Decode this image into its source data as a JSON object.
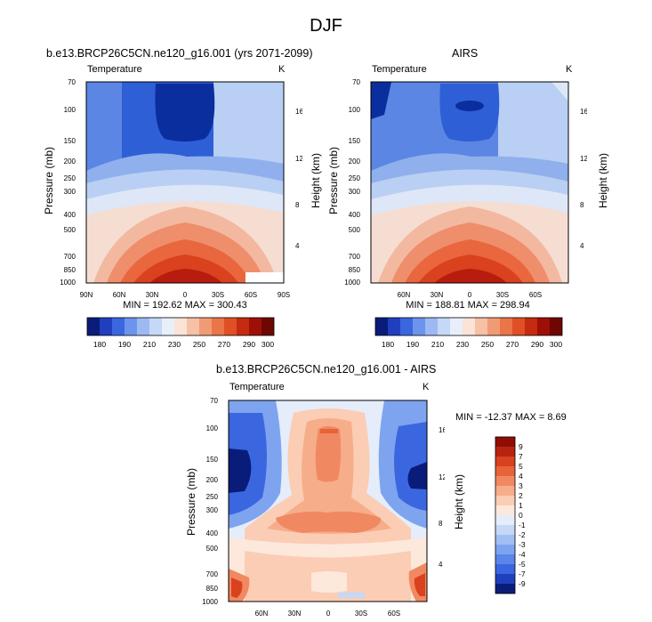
{
  "figure": {
    "title": "DJF"
  },
  "colors": {
    "model_contours": [
      "#0a2e9e",
      "#2f5fd6",
      "#5b86e3",
      "#8fb0ec",
      "#b9cff3",
      "#dde7f7",
      "#f6ddd2",
      "#f3b8a0",
      "#ef8e6b",
      "#e9663f",
      "#d9411f",
      "#b71c0e"
    ],
    "abs_colorbar": [
      "#0a1c7a",
      "#1f3fbf",
      "#3a67e0",
      "#6d94ec",
      "#9cb9f2",
      "#c5d8f7",
      "#e8effb",
      "#fbe3d6",
      "#f6c1a4",
      "#f19b74",
      "#ea7549",
      "#e04f25",
      "#c62a10",
      "#9e1006",
      "#6e0603"
    ],
    "diff_colorbar": [
      "#0a1c7a",
      "#1f3fbf",
      "#3a67e0",
      "#5a86ea",
      "#7ea4f0",
      "#a2bff4",
      "#c6d7f7",
      "#e5edfb",
      "#fde8dc",
      "#fbcdb4",
      "#f6ad8a",
      "#f08962",
      "#e86338",
      "#d9411f",
      "#b82310",
      "#8f0d04"
    ]
  },
  "chart_data": [
    {
      "type": "heatmap",
      "title": "b.e13.BRCP26C5CN.ne120_g16.001 (yrs 2071-2099)",
      "left_label": "Temperature",
      "right_label": "K",
      "xlabel": "",
      "ylabel": "Pressure (mb)",
      "y2label": "Height (km)",
      "x_ticks": [
        "90N",
        "60N",
        "30N",
        "0",
        "30S",
        "60S",
        "90S"
      ],
      "y_ticks": [
        70,
        100,
        150,
        200,
        250,
        300,
        400,
        500,
        700,
        850,
        1000
      ],
      "y2_ticks": [
        16,
        12,
        8,
        4
      ],
      "stats": "MIN = 192.62   MAX = 300.43",
      "colorbar_labels": [
        180,
        190,
        210,
        230,
        250,
        270,
        290,
        300
      ],
      "min": 192.62,
      "max": 300.43
    },
    {
      "type": "heatmap",
      "title": "AIRS",
      "left_label": "Temperature",
      "right_label": "K",
      "xlabel": "",
      "ylabel": "Pressure (mb)",
      "y2label": "Height (km)",
      "x_ticks": [
        "60N",
        "30N",
        "0",
        "30S",
        "60S"
      ],
      "y_ticks": [
        70,
        100,
        150,
        200,
        250,
        300,
        400,
        500,
        700,
        850,
        1000
      ],
      "y2_ticks": [
        16,
        12,
        8,
        4
      ],
      "stats": "MIN = 188.81   MAX = 298.94",
      "colorbar_labels": [
        180,
        190,
        210,
        230,
        250,
        270,
        290,
        300
      ],
      "min": 188.81,
      "max": 298.94
    },
    {
      "type": "heatmap",
      "title": "b.e13.BRCP26C5CN.ne120_g16.001 - AIRS",
      "left_label": "Temperature",
      "right_label": "K",
      "xlabel": "",
      "ylabel": "Pressure (mb)",
      "y2label": "Height (km)",
      "x_ticks": [
        "60N",
        "30N",
        "0",
        "30S",
        "60S"
      ],
      "y_ticks": [
        70,
        100,
        150,
        200,
        250,
        300,
        400,
        500,
        700,
        850,
        1000
      ],
      "y2_ticks": [
        16,
        12,
        8,
        4
      ],
      "stats": "MIN = -12.37  MAX =  8.69",
      "colorbar_labels": [
        9,
        7,
        5,
        4,
        3,
        2,
        1,
        0,
        -1,
        -2,
        -3,
        -4,
        -5,
        -7,
        -9
      ],
      "min": -12.37,
      "max": 8.69
    }
  ]
}
